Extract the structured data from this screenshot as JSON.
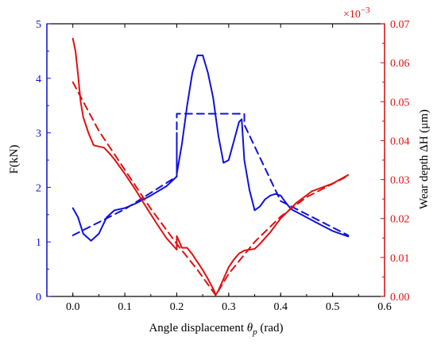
{
  "chart_data": {
    "type": "line",
    "xlabel": "Angle displacement θp (rad)",
    "xlabel_parts": {
      "pre": "Angle displacement ",
      "theta": "θ",
      "sub": "p",
      "post": " (rad)"
    },
    "ylabel_left": "F(kN)",
    "ylabel_right": "Wear depth ΔH (μm)",
    "right_multiplier": "×10",
    "right_multiplier_exp": "−3",
    "xlim": [
      -0.05,
      0.6
    ],
    "ylim_left": [
      0,
      5
    ],
    "ylim_right": [
      0,
      0.07
    ],
    "xticks": [
      "0.0",
      "0.1",
      "0.2",
      "0.3",
      "0.4",
      "0.5",
      "0.6"
    ],
    "yticks_left": [
      "0",
      "1",
      "2",
      "3",
      "4",
      "5"
    ],
    "yticks_right": [
      "0.00",
      "0.01",
      "0.02",
      "0.03",
      "0.04",
      "0.05",
      "0.06",
      "0.07"
    ],
    "colors": {
      "force": "#1010e0",
      "wear": "#e01010",
      "axes": "#000000"
    },
    "series": [
      {
        "axis": "left",
        "style": "solid",
        "color": "#1010e0",
        "x": [
          0.0,
          0.01,
          0.02,
          0.035,
          0.05,
          0.065,
          0.08,
          0.1,
          0.12,
          0.15,
          0.18,
          0.2,
          0.2,
          0.2,
          0.21,
          0.22,
          0.23,
          0.24,
          0.25,
          0.26,
          0.27,
          0.28,
          0.29,
          0.3,
          0.31,
          0.32,
          0.325,
          0.33,
          0.34,
          0.35,
          0.36,
          0.37,
          0.38,
          0.39,
          0.4,
          0.41,
          0.42,
          0.44,
          0.46,
          0.48,
          0.5,
          0.53
        ],
        "y": [
          1.62,
          1.45,
          1.15,
          1.02,
          1.15,
          1.45,
          1.58,
          1.62,
          1.7,
          1.85,
          2.02,
          2.2,
          3.0,
          2.25,
          2.8,
          3.5,
          4.1,
          4.42,
          4.42,
          4.1,
          3.65,
          2.95,
          2.45,
          2.5,
          2.85,
          3.2,
          3.25,
          2.5,
          1.95,
          1.58,
          1.65,
          1.78,
          1.85,
          1.88,
          1.85,
          1.72,
          1.6,
          1.5,
          1.4,
          1.3,
          1.2,
          1.1
        ]
      },
      {
        "axis": "left",
        "style": "dashed",
        "color": "#1010e0",
        "x": [
          0.0,
          0.1,
          0.2,
          0.2,
          0.25,
          0.33,
          0.33,
          0.4,
          0.53
        ],
        "y": [
          1.12,
          1.6,
          2.2,
          3.35,
          3.35,
          3.35,
          3.15,
          1.75,
          1.12
        ]
      },
      {
        "axis": "right",
        "style": "solid",
        "color": "#e01010",
        "x": [
          0.0,
          0.005,
          0.01,
          0.015,
          0.02,
          0.03,
          0.04,
          0.05,
          0.06,
          0.07,
          0.08,
          0.1,
          0.12,
          0.14,
          0.16,
          0.18,
          0.2,
          0.2,
          0.21,
          0.22,
          0.23,
          0.24,
          0.25,
          0.26,
          0.27,
          0.275,
          0.28,
          0.29,
          0.3,
          0.31,
          0.32,
          0.33,
          0.34,
          0.35,
          0.36,
          0.37,
          0.38,
          0.4,
          0.43,
          0.46,
          0.5,
          0.53
        ],
        "y": [
          0.0662,
          0.063,
          0.057,
          0.05,
          0.046,
          0.042,
          0.0388,
          0.0385,
          0.0382,
          0.0368,
          0.0352,
          0.0315,
          0.0275,
          0.0232,
          0.019,
          0.015,
          0.012,
          0.0155,
          0.0125,
          0.0125,
          0.0108,
          0.0088,
          0.0068,
          0.0045,
          0.002,
          0.0004,
          0.0015,
          0.0045,
          0.0075,
          0.0095,
          0.011,
          0.0118,
          0.012,
          0.0122,
          0.0135,
          0.015,
          0.0165,
          0.02,
          0.024,
          0.027,
          0.029,
          0.0312
        ]
      },
      {
        "axis": "right",
        "style": "dashed",
        "color": "#e01010",
        "x": [
          0.0,
          0.05,
          0.1,
          0.15,
          0.2,
          0.24,
          0.275,
          0.3,
          0.35,
          0.4,
          0.45,
          0.53
        ],
        "y": [
          0.055,
          0.0425,
          0.0325,
          0.0225,
          0.0135,
          0.0068,
          0.0003,
          0.0058,
          0.014,
          0.0205,
          0.0255,
          0.031
        ]
      }
    ]
  }
}
